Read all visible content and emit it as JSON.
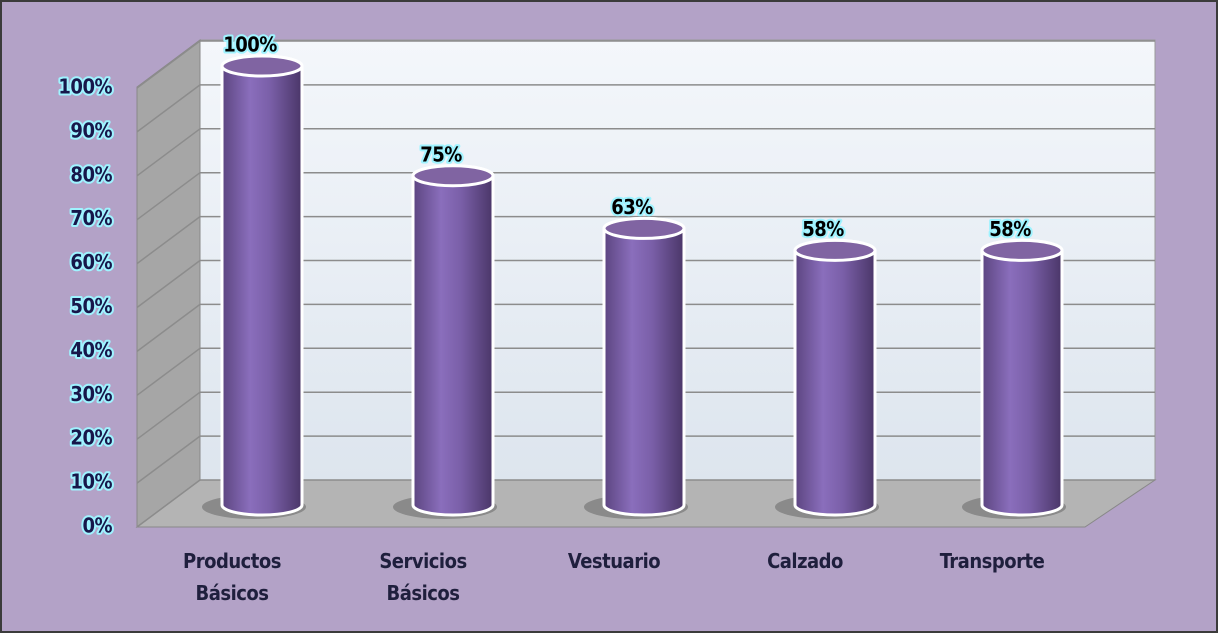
{
  "chart_data": {
    "type": "bar",
    "categories": [
      "Productos Básicos",
      "Servicios Básicos",
      "Vestuario",
      "Calzado",
      "Transporte"
    ],
    "values": [
      100,
      75,
      63,
      58,
      58
    ],
    "value_labels": [
      "100%",
      "75%",
      "63%",
      "58%",
      "58%"
    ],
    "color": "#8064a2",
    "ylim": [
      0,
      100
    ],
    "yticks": [
      {
        "value": 0,
        "label": "0%"
      },
      {
        "value": 10,
        "label": "10%"
      },
      {
        "value": 20,
        "label": "20%"
      },
      {
        "value": 30,
        "label": "30%"
      },
      {
        "value": 40,
        "label": "40%"
      },
      {
        "value": 50,
        "label": "50%"
      },
      {
        "value": 60,
        "label": "60%"
      },
      {
        "value": 70,
        "label": "70%"
      },
      {
        "value": 80,
        "label": "80%"
      },
      {
        "value": 90,
        "label": "90%"
      },
      {
        "value": 100,
        "label": "100%"
      }
    ],
    "grid": true
  }
}
